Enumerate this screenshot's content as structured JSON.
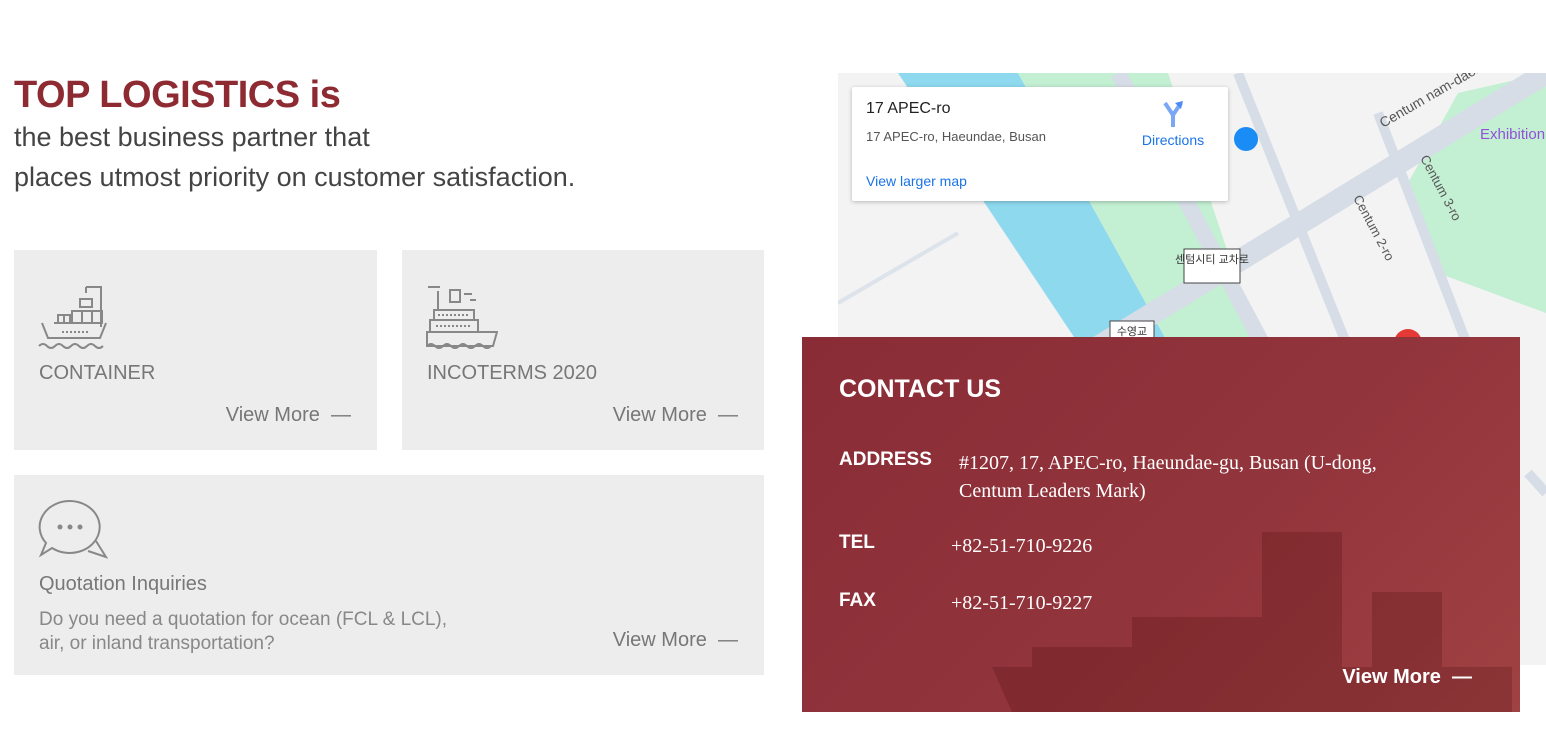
{
  "headline": {
    "brand": "TOP LOGISTICS is",
    "line1": "the best business partner that",
    "line2": "places utmost priority on customer satisfaction."
  },
  "cards": [
    {
      "icon": "container-ship-icon",
      "title": "CONTAINER",
      "more": "View More"
    },
    {
      "icon": "cruise-ship-icon",
      "title": "INCOTERMS 2020",
      "more": "View More"
    },
    {
      "icon": "chat-bubbles-icon",
      "title": "Quotation Inquiries",
      "desc": "Do you need a quotation for ocean (FCL & LCL), air, or inland transportation?",
      "more": "View More"
    }
  ],
  "map": {
    "place": "17 APEC-ro",
    "address": "17 APEC-ro, Haeundae, Busan",
    "directions": "Directions",
    "larger": "View larger map",
    "labels": [
      "Centum nam-daero",
      "Centum 2-ro",
      "Centum 3-ro",
      "Exhibition",
      "센텀시티 교차로",
      "수영교"
    ]
  },
  "contact": {
    "title": "CONTACT US",
    "address_label": "ADDRESS",
    "address_line1": "#1207, 17, APEC-ro, Haeundae-gu, Busan (U-dong,",
    "address_line2": "Centum Leaders Mark)",
    "tel_label": "TEL",
    "tel": "+82-51-710-9226",
    "fax_label": "FAX",
    "fax": "+82-51-710-9227",
    "more": "View More"
  },
  "colors": {
    "brand": "#8e2b32",
    "contact_bg": "#8a2c36",
    "card_bg": "#ededed",
    "link": "#1a73e8"
  }
}
